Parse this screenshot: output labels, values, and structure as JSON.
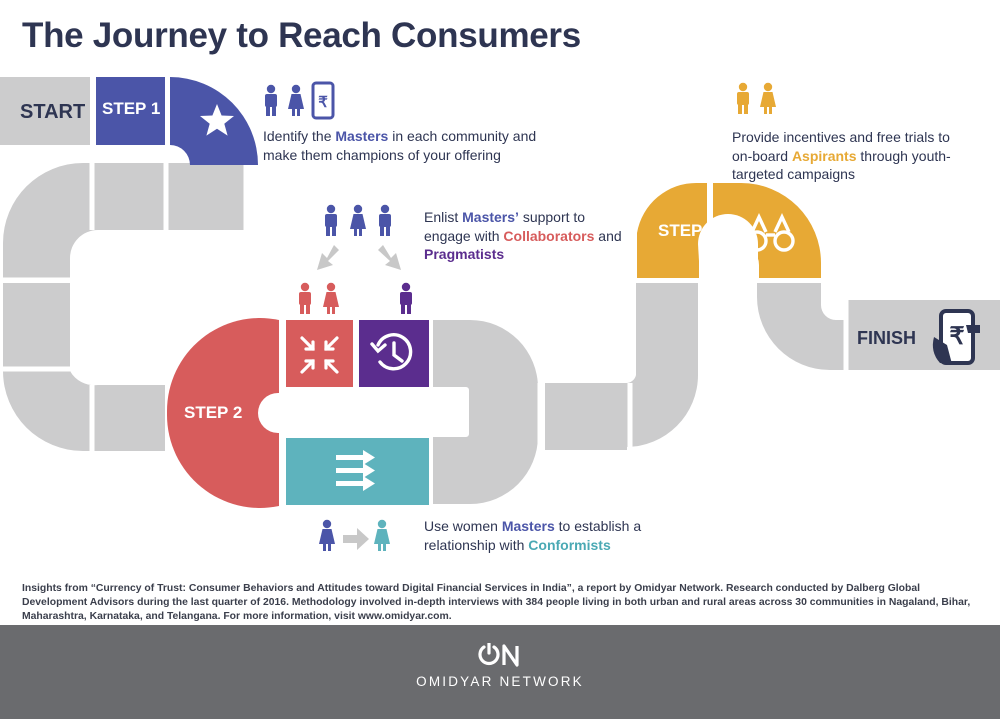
{
  "title": "The Journey to Reach Consumers",
  "board": {
    "start_label": "START",
    "finish_label": "FINISH",
    "step1_label": "STEP 1",
    "step2_label": "STEP 2",
    "step3_label": "STEP 3"
  },
  "icons": {
    "step1_tile": "star-icon",
    "step2_tile_a": "arrows-inward-icon",
    "step2_tile_b": "history-clock-icon",
    "step2_tile_c": "arrows-forward-icon",
    "step3_tile": "binoculars-icon",
    "finish": "phone-in-hand-rupee-icon",
    "step1_people": "man-woman-phone-rupee-icon",
    "step2_people": "man-woman-man-icon",
    "step3_people": "man-woman-icon"
  },
  "callouts": {
    "step1": {
      "pre": "Identify the ",
      "kw": "Masters",
      "post": " in each community and make them champions of your offering"
    },
    "enlist": {
      "pre": "Enlist ",
      "kw1": "Masters’",
      "mid1": " support to engage with ",
      "kw2": "Collaborators",
      "mid2": " and ",
      "kw3": "Pragmatists"
    },
    "women": {
      "pre": "Use women ",
      "kw1": "Masters",
      "mid": " to establish a relationship with ",
      "kw2": "Conformists"
    },
    "step3": {
      "pre": "Provide incentives and free trials to on-board ",
      "kw": "Aspirants",
      "post": " through youth-targeted campaigns"
    }
  },
  "footnote": "Insights from “Currency of Trust: Consumer Behaviors and Attitudes toward Digital Financial Services in India”, a report by Omidyar Network. Research conducted by Dalberg Global Development Advisors during the last quarter of 2016. Methodology involved in-depth interviews with 384 people living in both urban and rural areas across 30 communities in Nagaland, Bihar, Maharashtra, Karnataka, and Telangana. For more information, visit www.omidyar.com.",
  "footer": {
    "logo_text": "ON",
    "name": "OMIDYAR NETWORK"
  },
  "colors": {
    "navy": "#2e3552",
    "blue": "#4b55a8",
    "red": "#d75c5c",
    "purple": "#5b2d8e",
    "teal": "#5eb3bd",
    "gold": "#e7a935",
    "track": "#cccccd",
    "footer": "#6a6b6e"
  }
}
